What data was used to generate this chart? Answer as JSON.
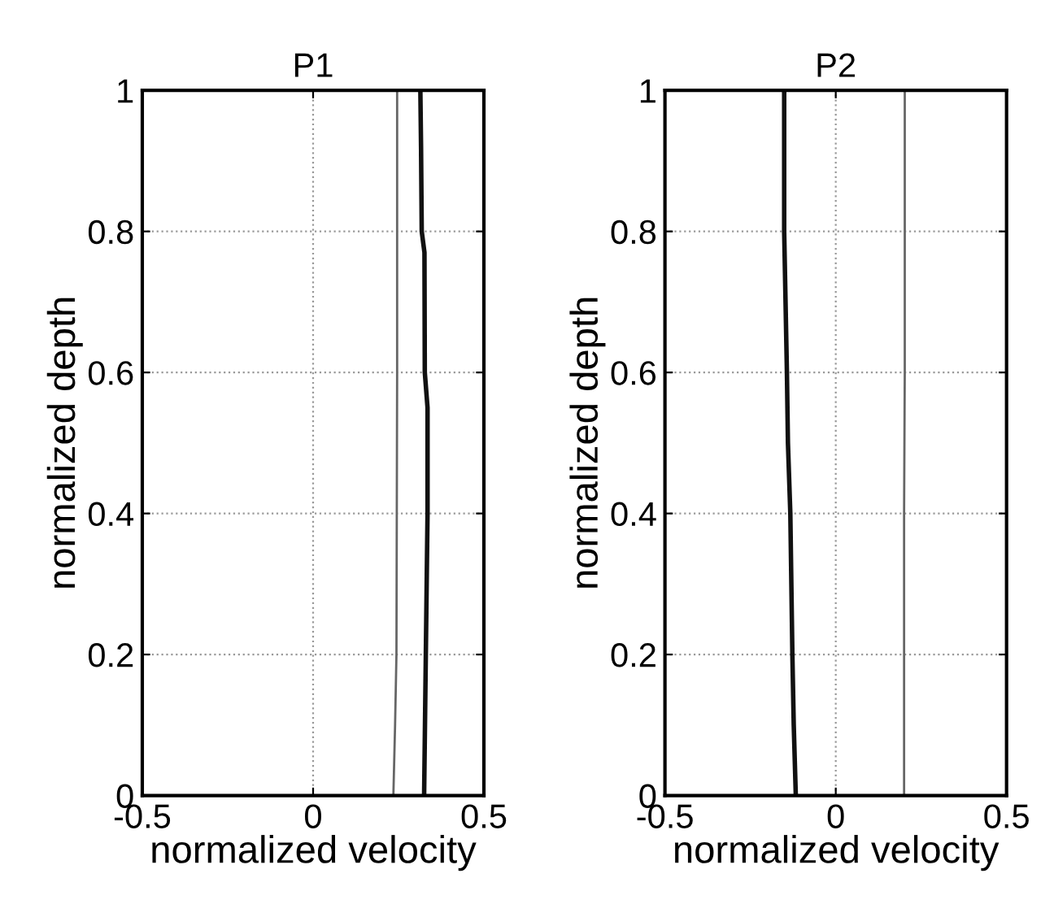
{
  "chart_data": [
    {
      "type": "line",
      "title": "P1",
      "xlabel": "normalized velocity",
      "ylabel": "normalized depth",
      "xlim": [
        -0.5,
        0.5
      ],
      "xticks": [
        -0.5,
        0,
        0.5
      ],
      "ylim": [
        0,
        1
      ],
      "yticks": [
        0,
        0.2,
        0.4,
        0.6,
        0.8,
        1
      ],
      "grid": true,
      "series": [
        {
          "color": "#111111",
          "x": [
            0.314,
            0.316,
            0.318,
            0.326,
            0.327,
            0.335,
            0.335,
            0.33,
            0.325
          ],
          "values": [
            1,
            0.92,
            0.8,
            0.77,
            0.6,
            0.55,
            0.4,
            0.2,
            0
          ]
        },
        {
          "color": "#666666",
          "x": [
            0.246,
            0.246,
            0.244,
            0.24,
            0.235
          ],
          "values": [
            1,
            0.6,
            0.2,
            0.1,
            0
          ]
        }
      ]
    },
    {
      "type": "line",
      "title": "P2",
      "xlabel": "normalized velocity",
      "ylabel": "normalized depth",
      "xlim": [
        -0.5,
        0.5
      ],
      "xticks": [
        -0.5,
        0,
        0.5
      ],
      "ylim": [
        0,
        1
      ],
      "yticks": [
        0,
        0.2,
        0.4,
        0.6,
        0.8,
        1
      ],
      "grid": true,
      "series": [
        {
          "color": "#111111",
          "x": [
            -0.151,
            -0.151,
            -0.143,
            -0.14,
            -0.133,
            -0.127,
            -0.123,
            -0.117
          ],
          "values": [
            1,
            0.8,
            0.6,
            0.5,
            0.4,
            0.2,
            0.1,
            0
          ]
        },
        {
          "color": "#666666",
          "x": [
            0.202,
            0.202,
            0.2,
            0.2,
            0.2
          ],
          "values": [
            1,
            0.6,
            0.4,
            0.2,
            0
          ]
        }
      ]
    }
  ]
}
